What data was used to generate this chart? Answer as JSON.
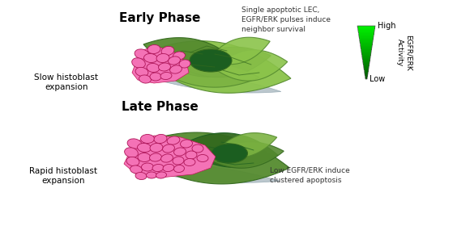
{
  "early_phase_label": "Early Phase",
  "late_phase_label": "Late Phase",
  "slow_label": "Slow histoblast\nexpansion",
  "rapid_label": "Rapid histoblast\nexpansion",
  "early_annotation": "Single apoptotic LEC,\nEGFR/ERK pulses induce\nneighbor survival",
  "late_annotation": "Low EGFR/ERK induce\nclustered apoptosis",
  "colorbar_high": "High",
  "colorbar_low": "Low",
  "colorbar_label": "EGFR/ERK\nActivity",
  "bg_color": "#ffffff",
  "pink_fill": "#f472b6",
  "pink_edge": "#c2185b",
  "pink_dark_edge": "#ad1457",
  "green_pale": "#8bc34a",
  "green_light": "#7cb342",
  "green_mid": "#558b2f",
  "green_dark": "#33691e",
  "green_darker": "#1b5e20",
  "green_base": "#4caf50",
  "gray_shadow": "#b0bec5",
  "gray_light": "#cfd8dc"
}
